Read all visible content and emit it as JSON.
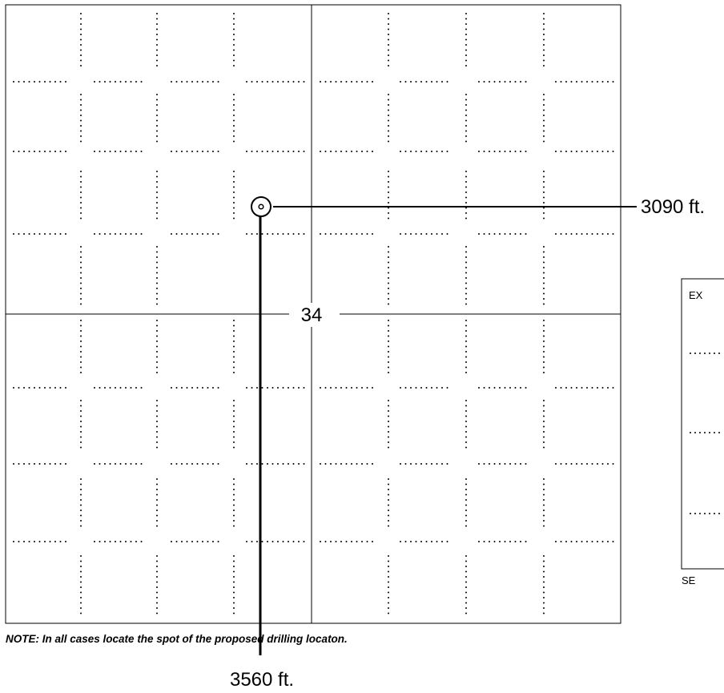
{
  "section": {
    "number": "34"
  },
  "measurements": {
    "east": "3090 ft.",
    "south": "3560 ft."
  },
  "note": "NOTE: In all cases locate the spot of the proposed drilling locaton.",
  "example_box": {
    "label": "EX",
    "footer": "SE"
  },
  "icons": {
    "well": "drilling-location-symbol"
  }
}
